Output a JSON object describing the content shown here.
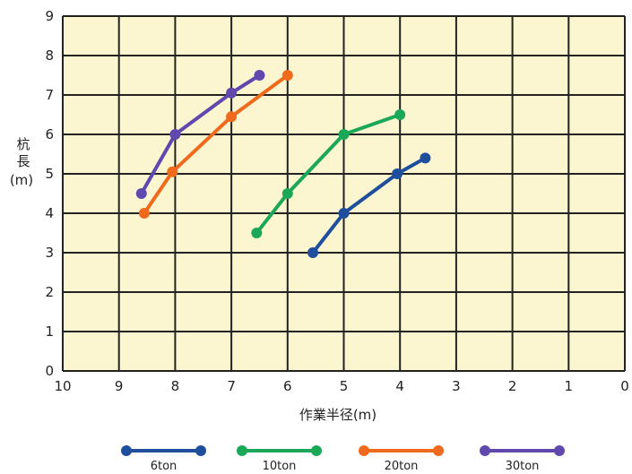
{
  "chart_data": {
    "type": "line",
    "xlabel": "作業半径(m)",
    "ylabel_lines": [
      "杭",
      "長",
      "(m)"
    ],
    "xlim": [
      10,
      0
    ],
    "ylim": [
      0,
      9
    ],
    "x_ticks": [
      "10",
      "9",
      "8",
      "7",
      "6",
      "5",
      "4",
      "3",
      "2",
      "1",
      "0"
    ],
    "y_ticks": [
      "0",
      "1",
      "2",
      "3",
      "4",
      "5",
      "6",
      "7",
      "8",
      "9"
    ],
    "grid": true,
    "background": "#fbf6d0",
    "legend_position": "bottom",
    "series": [
      {
        "name": "6ton",
        "color": "#1f4e9c",
        "points": [
          [
            5.55,
            3.0
          ],
          [
            5.0,
            4.0
          ],
          [
            4.05,
            5.0
          ],
          [
            3.55,
            5.4
          ]
        ]
      },
      {
        "name": "10ton",
        "color": "#1aa858",
        "points": [
          [
            6.55,
            3.5
          ],
          [
            6.0,
            4.5
          ],
          [
            5.0,
            6.0
          ],
          [
            4.0,
            6.5
          ]
        ]
      },
      {
        "name": "20ton",
        "color": "#f06a1e",
        "points": [
          [
            8.55,
            4.0
          ],
          [
            8.05,
            5.05
          ],
          [
            7.0,
            6.45
          ],
          [
            6.0,
            7.5
          ]
        ]
      },
      {
        "name": "30ton",
        "color": "#6048ae",
        "points": [
          [
            8.6,
            4.5
          ],
          [
            8.0,
            6.0
          ],
          [
            7.0,
            7.05
          ],
          [
            6.5,
            7.5
          ]
        ]
      }
    ]
  }
}
